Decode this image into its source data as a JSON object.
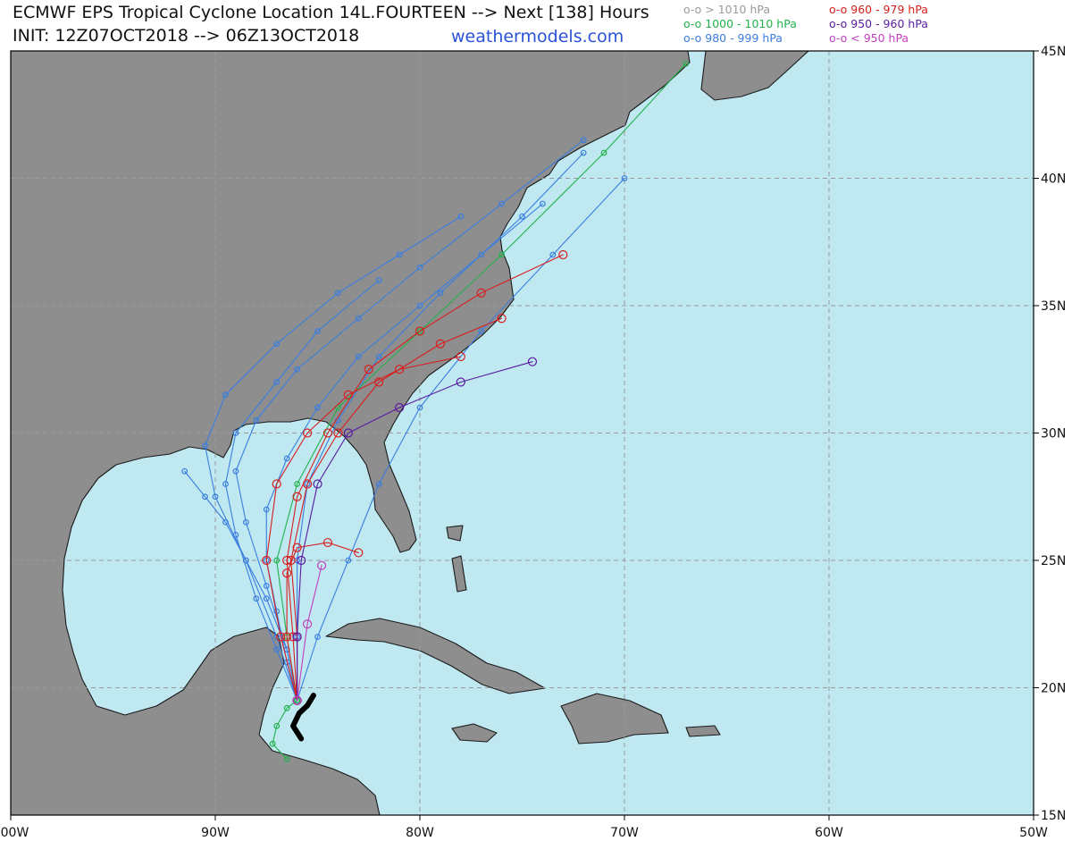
{
  "chart_data": {
    "type": "track-map",
    "title": "ECMWF EPS Tropical Cyclone Location 14L.FOURTEEN --> Next [138] Hours",
    "subtitle": "INIT: 12Z07OCT2018 --> 06Z13OCT2018",
    "source": "weathermodels.com",
    "legend": [
      {
        "label": "o-o > 1010 hPa",
        "color": "#9a9a9a"
      },
      {
        "label": "o-o 1000 - 1010 hPa",
        "color": "#22b24c"
      },
      {
        "label": "o-o 980 - 999 hPa",
        "color": "#3a7ee0"
      },
      {
        "label": "o-o 960 - 979 hPa",
        "color": "#d81e1e"
      },
      {
        "label": "o-o 950 - 960 hPa",
        "color": "#5a1aa0"
      },
      {
        "label": "o-o < 950 hPa",
        "color": "#c040c0"
      }
    ],
    "xlim": [
      -100,
      -50
    ],
    "ylim": [
      15,
      45
    ],
    "xticks": [
      {
        "value": -100,
        "label": "100W"
      },
      {
        "value": -90,
        "label": "90W"
      },
      {
        "value": -80,
        "label": "80W"
      },
      {
        "value": -70,
        "label": "70W"
      },
      {
        "value": -60,
        "label": "60W"
      },
      {
        "value": -50,
        "label": "50W"
      }
    ],
    "yticks": [
      {
        "value": 15,
        "label": "15N"
      },
      {
        "value": 20,
        "label": "20N"
      },
      {
        "value": 25,
        "label": "25N"
      },
      {
        "value": 30,
        "label": "30N"
      },
      {
        "value": 35,
        "label": "35N"
      },
      {
        "value": 40,
        "label": "40N"
      },
      {
        "value": 45,
        "label": "45N"
      }
    ],
    "grid": true,
    "tracks": [
      {
        "color": "#3a7ee0",
        "lon": [
          -86,
          -86.5,
          -87,
          -87.5,
          -87.5,
          -86.5,
          -85,
          -83,
          -80,
          -77,
          -74
        ],
        "lat": [
          19.5,
          21,
          23,
          25,
          27,
          29,
          31,
          33,
          35,
          37,
          39
        ]
      },
      {
        "color": "#3a7ee0",
        "lon": [
          -86,
          -86.5,
          -87.5,
          -88.5,
          -89,
          -88,
          -86,
          -83,
          -80,
          -76,
          -72
        ],
        "lat": [
          19.5,
          21.5,
          24,
          26.5,
          28.5,
          30.5,
          32.5,
          34.5,
          36.5,
          39,
          41.5
        ]
      },
      {
        "color": "#3a7ee0",
        "lon": [
          -86,
          -87,
          -88.5,
          -90,
          -90.5,
          -89.5,
          -87,
          -84,
          -81,
          -78
        ],
        "lat": [
          19.5,
          22,
          25,
          27.5,
          29.5,
          31.5,
          33.5,
          35.5,
          37,
          38.5
        ]
      },
      {
        "color": "#3a7ee0",
        "lon": [
          -86,
          -86,
          -86,
          -85.5,
          -84,
          -82,
          -79,
          -75,
          -72
        ],
        "lat": [
          19.5,
          22,
          25,
          28,
          30.5,
          33,
          35.5,
          38.5,
          41
        ]
      },
      {
        "color": "#3a7ee0",
        "lon": [
          -86,
          -87,
          -88,
          -89,
          -89.5,
          -89,
          -87,
          -85,
          -82
        ],
        "lat": [
          19.5,
          21.5,
          23.5,
          26,
          28,
          30,
          32,
          34,
          36
        ]
      },
      {
        "color": "#3a7ee0",
        "lon": [
          -86,
          -86.5,
          -87.5,
          -88.5,
          -89.5,
          -90.5,
          -91.5
        ],
        "lat": [
          19.5,
          21.5,
          23.5,
          25,
          26.5,
          27.5,
          28.5
        ]
      },
      {
        "color": "#3a7ee0",
        "lon": [
          -86,
          -85,
          -83.5,
          -82,
          -80,
          -77,
          -73.5,
          -70
        ],
        "lat": [
          19.5,
          22,
          25,
          28,
          31,
          34,
          37,
          40
        ]
      },
      {
        "color": "#22b24c",
        "lon": [
          -86,
          -86.5,
          -87,
          -86,
          -84,
          -80,
          -76,
          -71,
          -67
        ],
        "lat": [
          19.5,
          22,
          25,
          28,
          31,
          34,
          37,
          41,
          44.5
        ]
      },
      {
        "color": "#22b24c",
        "lon": [
          -86,
          -86.5,
          -87,
          -87.2,
          -86.5
        ],
        "lat": [
          19.5,
          19.2,
          18.5,
          17.8,
          17.2
        ]
      },
      {
        "color": "#d81e1e",
        "lon": [
          -86,
          -86.2,
          -86.5,
          -86,
          -84.5,
          -82.5,
          -80,
          -77,
          -73
        ],
        "lat": [
          19.5,
          22,
          25,
          27.5,
          30,
          32.5,
          34,
          35.5,
          37
        ]
      },
      {
        "color": "#d81e1e",
        "lon": [
          -86,
          -86,
          -86.3,
          -85.5,
          -84,
          -82,
          -79,
          -76
        ],
        "lat": [
          19.5,
          22,
          25,
          28,
          30,
          32,
          33.5,
          34.5
        ]
      },
      {
        "color": "#d81e1e",
        "lon": [
          -86,
          -86.5,
          -86.5,
          -86,
          -84.5,
          -83
        ],
        "lat": [
          19.5,
          22,
          24.5,
          25.5,
          25.7,
          25.3
        ]
      },
      {
        "color": "#d81e1e",
        "lon": [
          -86,
          -86.8,
          -87.5,
          -87,
          -85.5,
          -83.5,
          -81,
          -78
        ],
        "lat": [
          19.5,
          22,
          25,
          28,
          30,
          31.5,
          32.5,
          33
        ]
      },
      {
        "color": "#5a1aa0",
        "lon": [
          -86,
          -86,
          -85.8,
          -85,
          -83.5,
          -81,
          -78,
          -74.5
        ],
        "lat": [
          19.5,
          22,
          25,
          28,
          30,
          31,
          32,
          32.8
        ]
      },
      {
        "color": "#c040c0",
        "lon": [
          -86,
          -85.5,
          -84.8
        ],
        "lat": [
          19.5,
          22.5,
          24.8
        ]
      }
    ],
    "observed_track": {
      "color": "#000000",
      "lon": [
        -85.8,
        -86.2,
        -85.9,
        -85.5,
        -85.2
      ],
      "lat": [
        18.0,
        18.5,
        19.0,
        19.3,
        19.7
      ]
    }
  }
}
